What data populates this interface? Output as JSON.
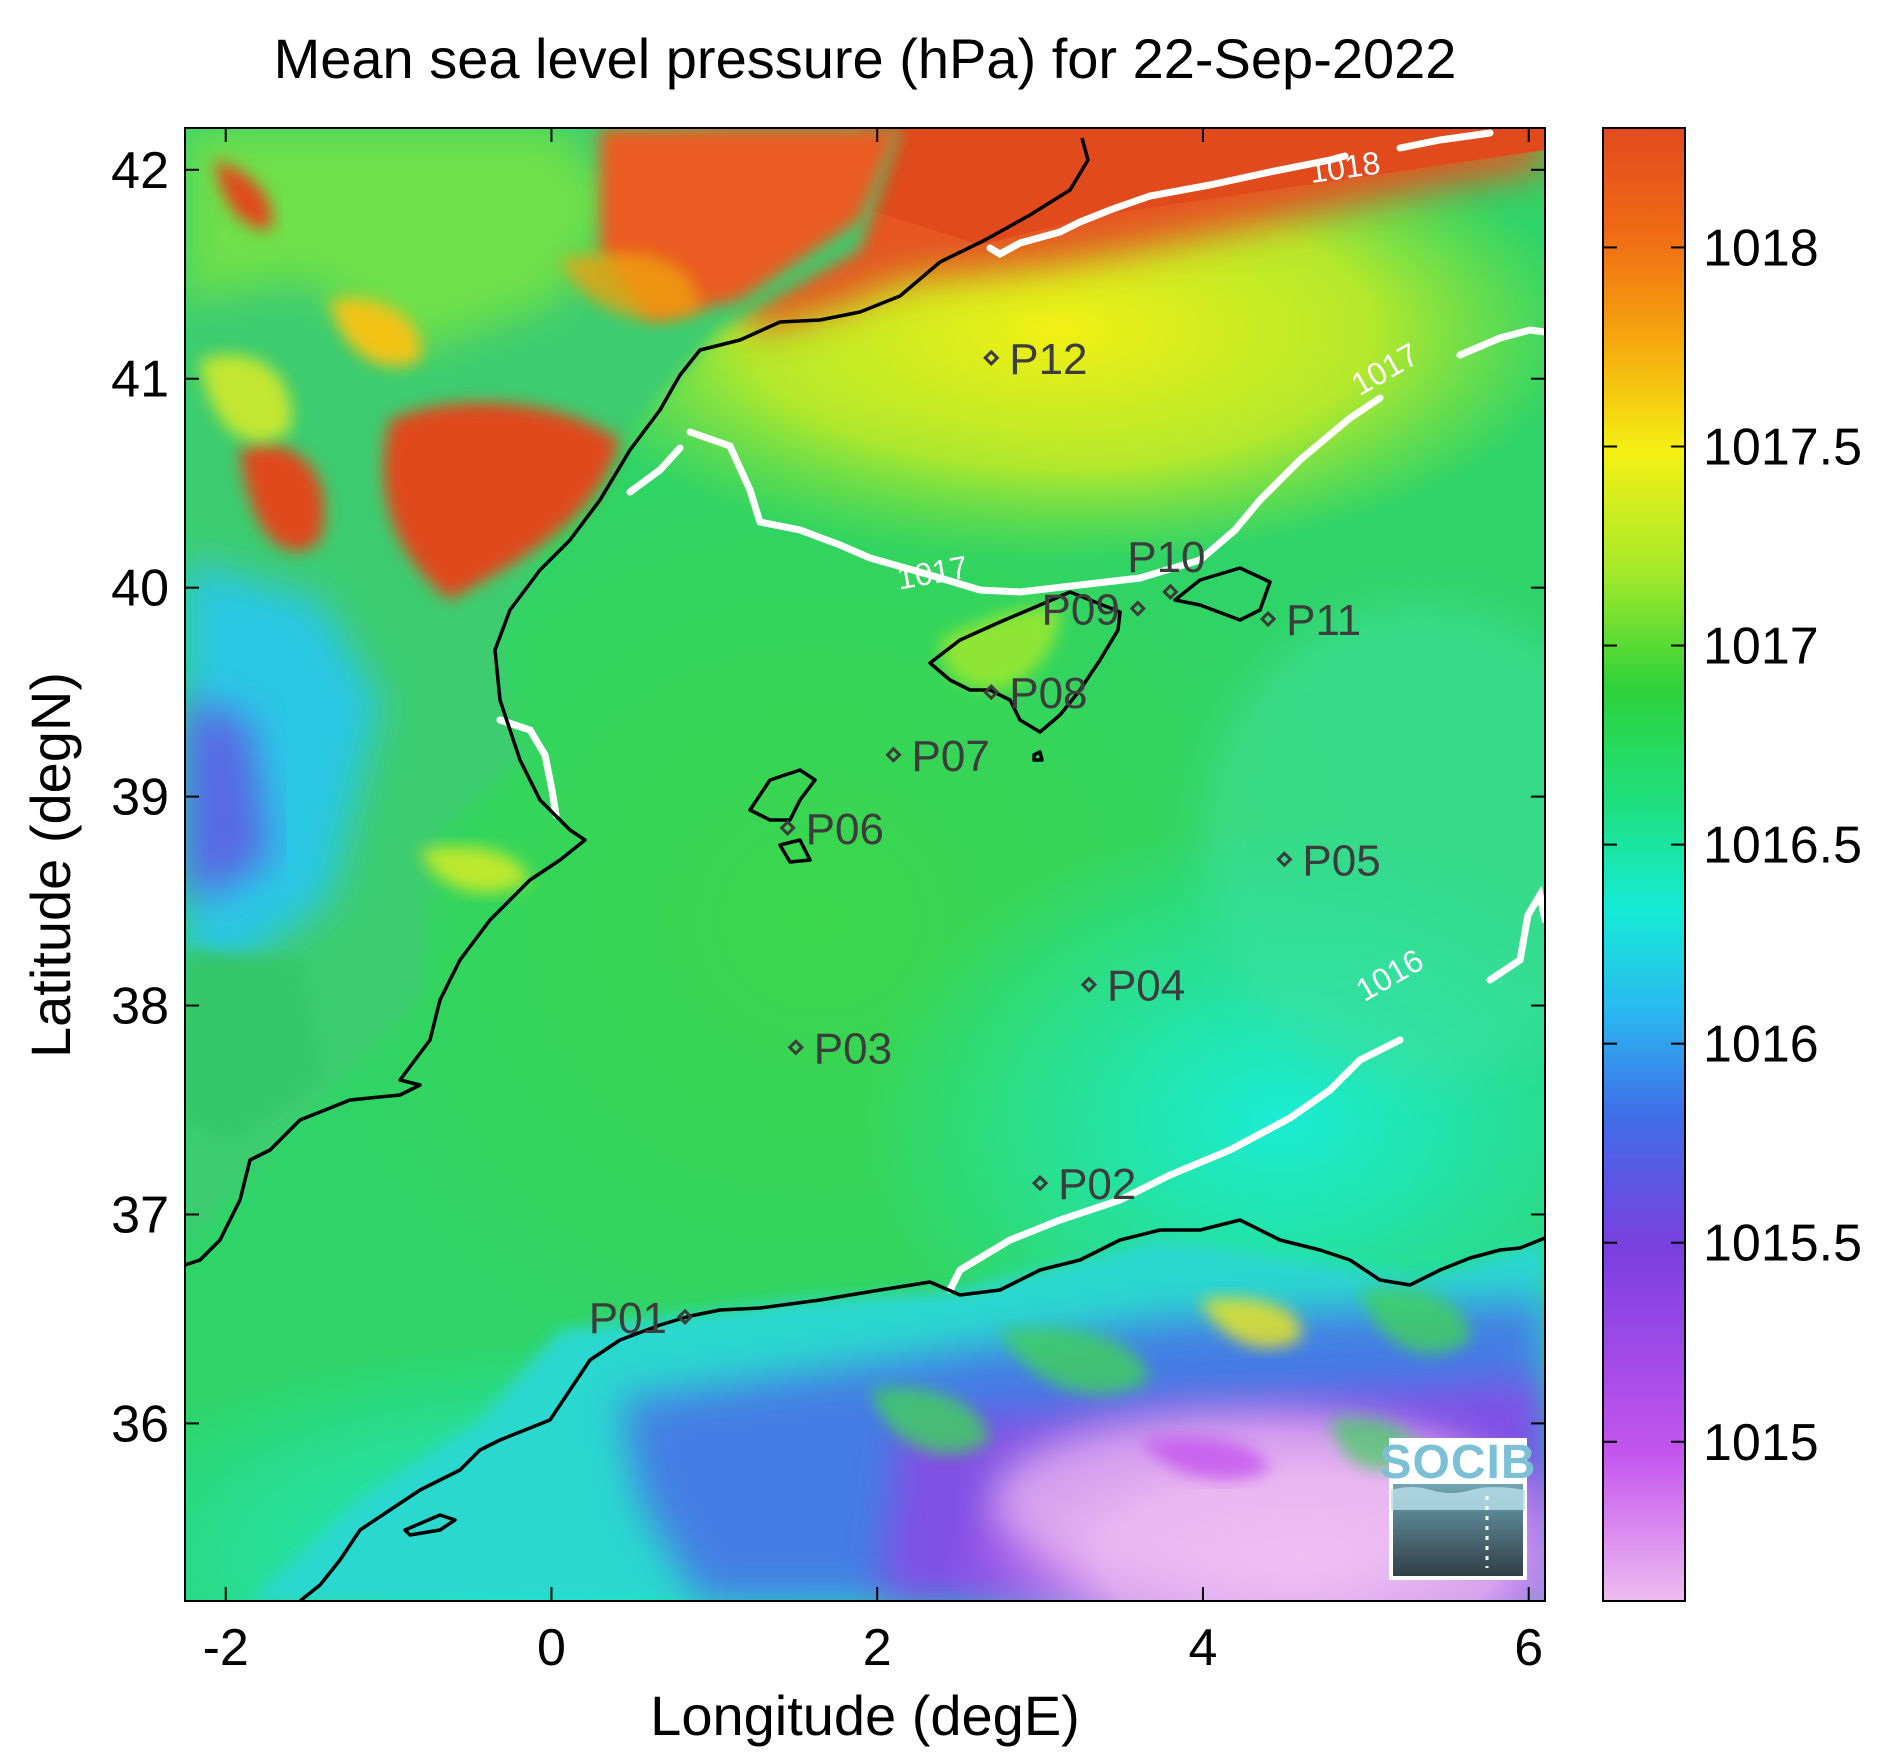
{
  "title": "Mean sea level pressure (hPa) for 22-Sep-2022",
  "x_axis": {
    "label": "Longitude (degE)",
    "range": [
      -2.25,
      6.1
    ],
    "ticks": [
      {
        "value": -2,
        "label": "-2"
      },
      {
        "value": 0,
        "label": "0"
      },
      {
        "value": 2,
        "label": "2"
      },
      {
        "value": 4,
        "label": "4"
      },
      {
        "value": 6,
        "label": "6"
      }
    ]
  },
  "y_axis": {
    "label": "Latitude (degN)",
    "range": [
      35.15,
      42.2
    ],
    "ticks": [
      {
        "value": 36,
        "label": "36"
      },
      {
        "value": 37,
        "label": "37"
      },
      {
        "value": 38,
        "label": "38"
      },
      {
        "value": 39,
        "label": "39"
      },
      {
        "value": 40,
        "label": "40"
      },
      {
        "value": 41,
        "label": "41"
      },
      {
        "value": 42,
        "label": "42"
      }
    ]
  },
  "colorbar": {
    "range": [
      1014.6,
      1018.3
    ],
    "ticks": [
      {
        "value": 1015,
        "label": "1015"
      },
      {
        "value": 1015.5,
        "label": "1015.5"
      },
      {
        "value": 1016,
        "label": "1016"
      },
      {
        "value": 1016.5,
        "label": "1016.5"
      },
      {
        "value": 1017,
        "label": "1017"
      },
      {
        "value": 1017.5,
        "label": "1017.5"
      },
      {
        "value": 1018,
        "label": "1018"
      }
    ],
    "colors": [
      "#eebcf0",
      "#c455ee",
      "#7a3fe0",
      "#3f6ee8",
      "#2ab8f0",
      "#16ecd6",
      "#1ee080",
      "#2ed23a",
      "#a6ea2a",
      "#f4f014",
      "#f6a40e",
      "#ef6a14",
      "#e24a1e"
    ]
  },
  "contours": [
    {
      "label": "1018",
      "lon": 4.88,
      "lat": 41.96
    },
    {
      "label": "1017",
      "lon": 2.35,
      "lat": 40.02
    },
    {
      "label": "1017",
      "lon": 5.15,
      "lat": 41.0
    },
    {
      "label": "1016",
      "lon": 5.18,
      "lat": 38.1
    }
  ],
  "points": [
    {
      "id": "P01",
      "lon": 0.82,
      "lat": 36.51,
      "anchor": "left"
    },
    {
      "id": "P02",
      "lon": 3.0,
      "lat": 37.15,
      "anchor": "right"
    },
    {
      "id": "P03",
      "lon": 1.5,
      "lat": 37.8,
      "anchor": "right"
    },
    {
      "id": "P04",
      "lon": 3.3,
      "lat": 38.1,
      "anchor": "right"
    },
    {
      "id": "P05",
      "lon": 4.5,
      "lat": 38.7,
      "anchor": "right"
    },
    {
      "id": "P06",
      "lon": 1.45,
      "lat": 38.85,
      "anchor": "right"
    },
    {
      "id": "P07",
      "lon": 2.1,
      "lat": 39.2,
      "anchor": "right"
    },
    {
      "id": "P08",
      "lon": 2.7,
      "lat": 39.5,
      "anchor": "right"
    },
    {
      "id": "P09",
      "lon": 3.6,
      "lat": 39.9,
      "anchor": "left"
    },
    {
      "id": "P10",
      "lon": 3.8,
      "lat": 39.98,
      "anchor": "above"
    },
    {
      "id": "P11",
      "lon": 4.4,
      "lat": 39.85,
      "anchor": "right"
    },
    {
      "id": "P12",
      "lon": 2.7,
      "lat": 41.1,
      "anchor": "right"
    }
  ],
  "logo": {
    "text": "SOCIB"
  }
}
